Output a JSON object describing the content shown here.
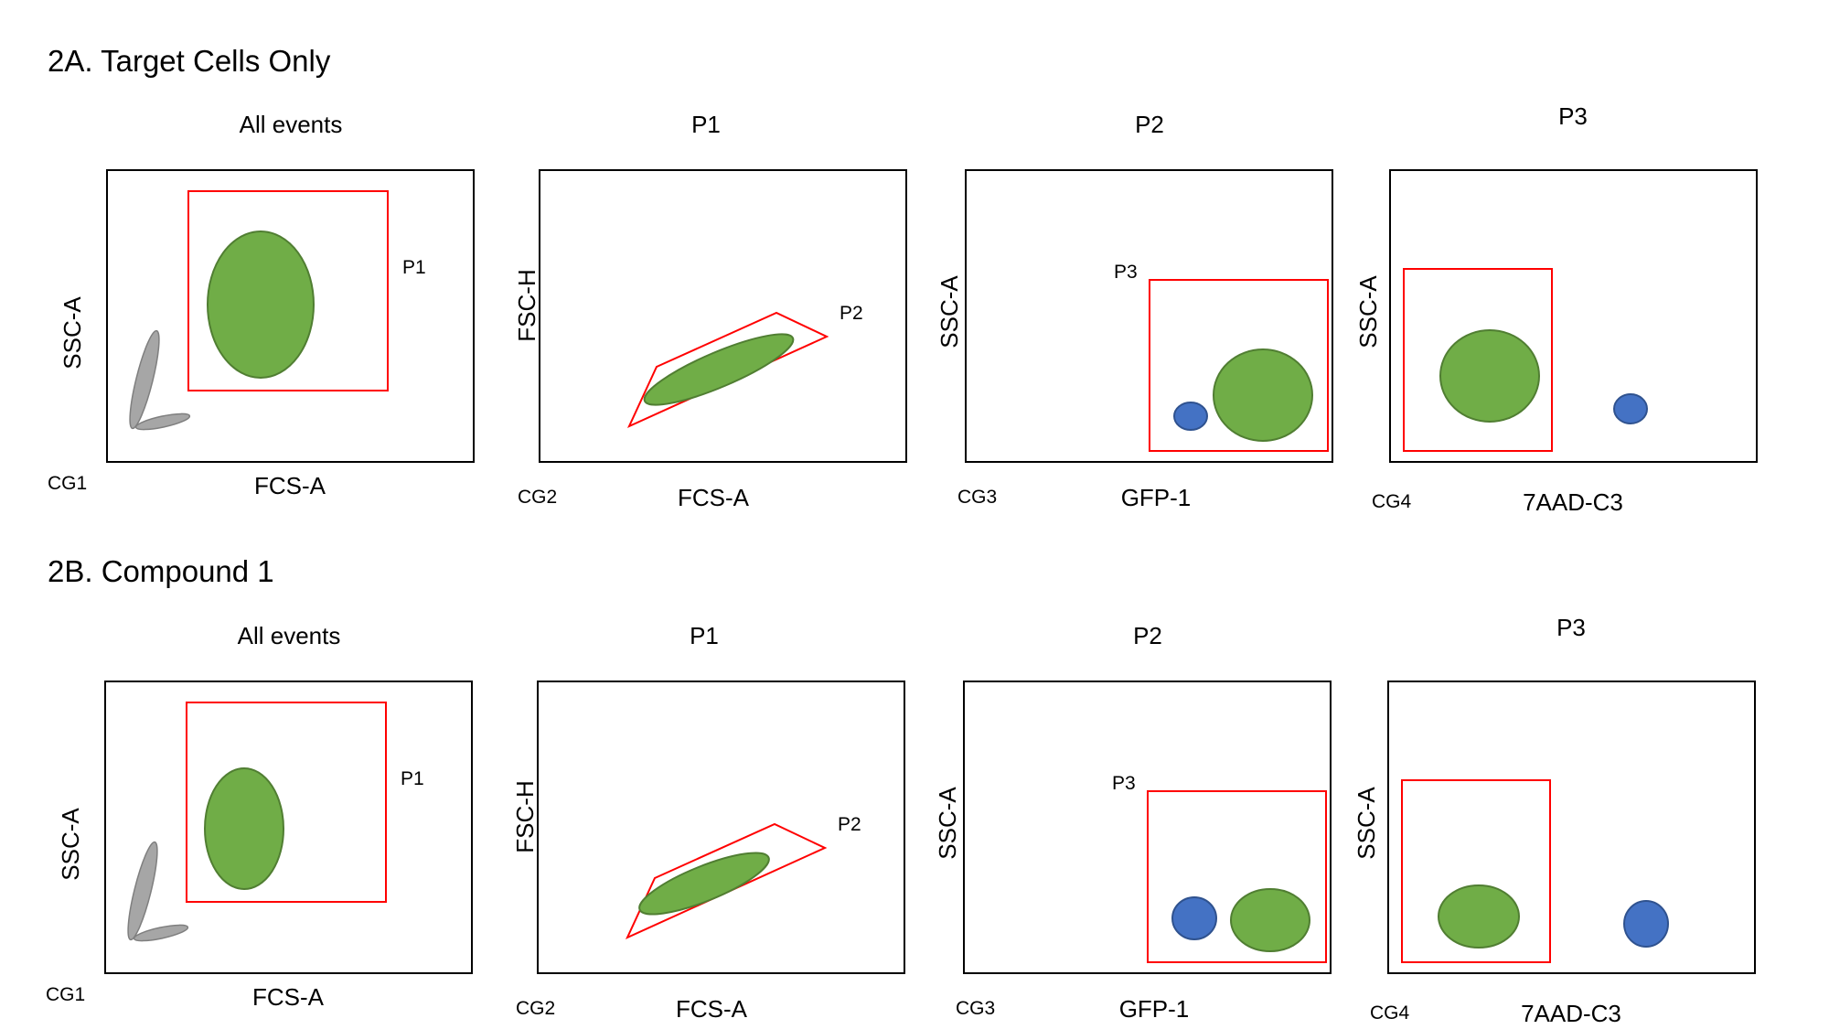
{
  "sections": [
    {
      "title": "2A. Target Cells Only",
      "panels": [
        {
          "title": "All events",
          "id": "CG1",
          "xlabel": "FCS-A",
          "ylabel": "SSC-A",
          "gate": "P1"
        },
        {
          "title": "P1",
          "id": "CG2",
          "xlabel": "FCS-A",
          "ylabel": "FSC-H",
          "gate": "P2"
        },
        {
          "title": "P2",
          "id": "CG3",
          "xlabel": "GFP-1",
          "ylabel": "SSC-A",
          "gate": "P3"
        },
        {
          "title": "P3",
          "id": "CG4",
          "xlabel": "7AAD-C3",
          "ylabel": "SSC-A",
          "gate": ""
        }
      ]
    },
    {
      "title": "2B. Compound 1",
      "panels": [
        {
          "title": "All events",
          "id": "CG1",
          "xlabel": "FCS-A",
          "ylabel": "SSC-A",
          "gate": "P1"
        },
        {
          "title": "P1",
          "id": "CG2",
          "xlabel": "FCS-A",
          "ylabel": "FSC-H",
          "gate": "P2"
        },
        {
          "title": "P2",
          "id": "CG3",
          "xlabel": "GFP-1",
          "ylabel": "SSC-A",
          "gate": "P3"
        },
        {
          "title": "P3",
          "id": "CG4",
          "xlabel": "7AAD-C3",
          "ylabel": "SSC-A",
          "gate": ""
        }
      ]
    }
  ],
  "colors": {
    "gate": "#ff0000",
    "live_population": "#70ad47",
    "live_outline": "#507e32",
    "dead_population": "#4472c4",
    "dead_outline": "#2f528f",
    "debris": "#a6a6a6",
    "debris_outline": "#7f7f7f",
    "frame": "#000000"
  }
}
